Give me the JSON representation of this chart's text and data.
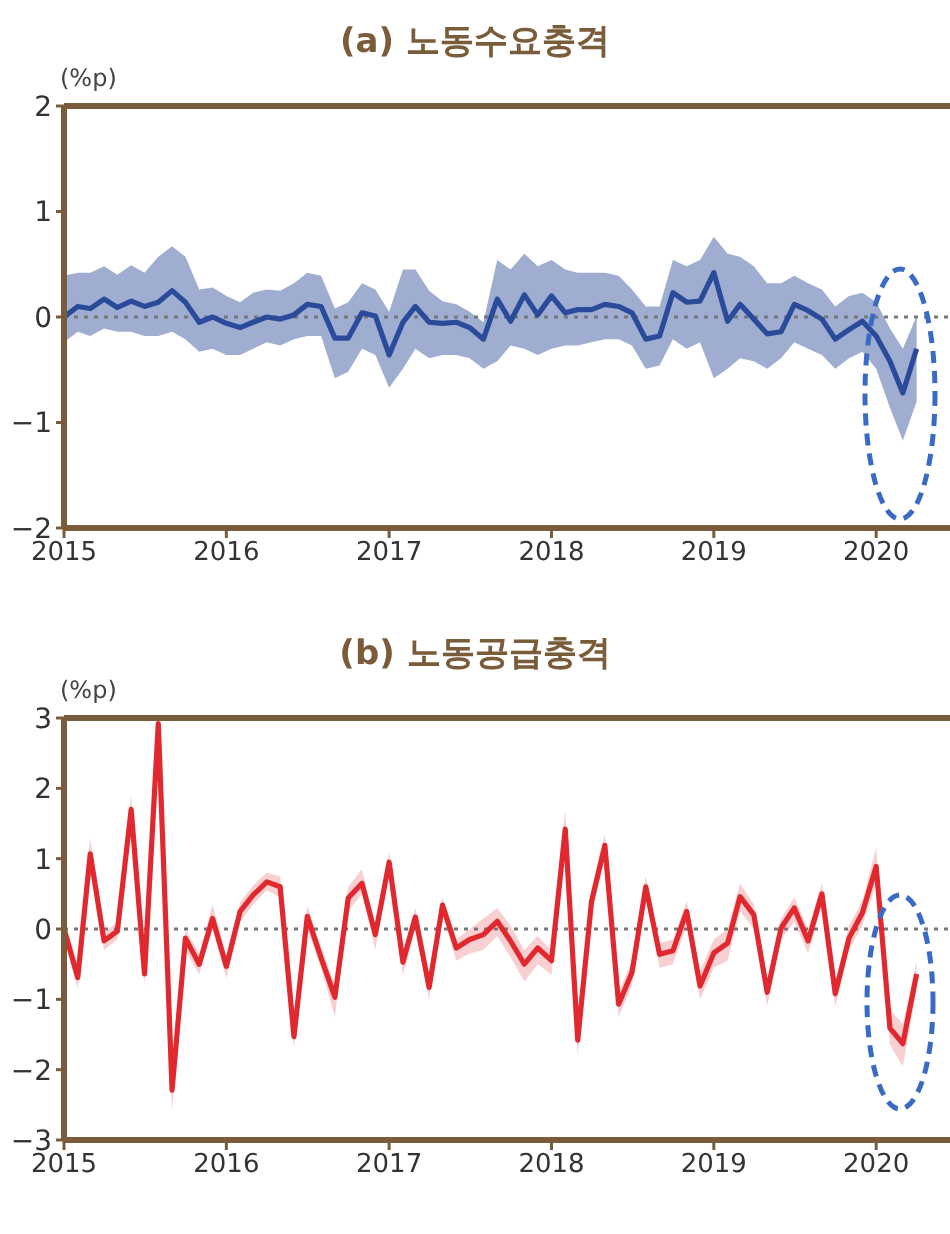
{
  "chart_data": [
    {
      "type": "line",
      "title": "(a) 노동수요충격",
      "ylabel": "(%p)",
      "x": [
        "2015-01",
        "2015-02",
        "2015-03",
        "2015-04",
        "2015-05",
        "2015-06",
        "2015-07",
        "2015-08",
        "2015-09",
        "2015-10",
        "2015-11",
        "2015-12",
        "2016-01",
        "2016-02",
        "2016-03",
        "2016-04",
        "2016-05",
        "2016-06",
        "2016-07",
        "2016-08",
        "2016-09",
        "2016-10",
        "2016-11",
        "2016-12",
        "2017-01",
        "2017-02",
        "2017-03",
        "2017-04",
        "2017-05",
        "2017-06",
        "2017-07",
        "2017-08",
        "2017-09",
        "2017-10",
        "2017-11",
        "2017-12",
        "2018-01",
        "2018-02",
        "2018-03",
        "2018-04",
        "2018-05",
        "2018-06",
        "2018-07",
        "2018-08",
        "2018-09",
        "2018-10",
        "2018-11",
        "2018-12",
        "2019-01",
        "2019-02",
        "2019-03",
        "2019-04",
        "2019-05",
        "2019-06",
        "2019-07",
        "2019-08",
        "2019-09",
        "2019-10",
        "2019-11",
        "2019-12",
        "2020-01",
        "2020-02",
        "2020-03",
        "2020-04"
      ],
      "series": [
        {
          "color": "#2a4a9a",
          "values": [
            0,
            0.1,
            0.08,
            0.17,
            0.09,
            0.15,
            0.1,
            0.14,
            0.25,
            0.14,
            -0.05,
            0,
            -0.06,
            -0.1,
            -0.05,
            0,
            -0.02,
            0.02,
            0.12,
            0.1,
            -0.2,
            -0.2,
            0.04,
            0.01,
            -0.36,
            -0.05,
            0.1,
            -0.05,
            -0.06,
            -0.05,
            -0.1,
            -0.21,
            0.17,
            -0.04,
            0.21,
            0.02,
            0.2,
            0.04,
            0.07,
            0.07,
            0.12,
            0.1,
            0.04,
            -0.21,
            -0.18,
            0.23,
            0.14,
            0.15,
            0.42,
            -0.04,
            0.12,
            -0.02,
            -0.16,
            -0.14,
            0.12,
            0.06,
            -0.02,
            -0.21,
            -0.12,
            -0.04,
            -0.18,
            -0.42,
            -0.72,
            -0.3
          ],
          "lower": [
            -0.24,
            -0.14,
            -0.18,
            -0.11,
            -0.14,
            -0.14,
            -0.18,
            -0.18,
            -0.14,
            -0.21,
            -0.33,
            -0.3,
            -0.36,
            -0.36,
            -0.3,
            -0.24,
            -0.27,
            -0.21,
            -0.18,
            -0.18,
            -0.58,
            -0.52,
            -0.3,
            -0.36,
            -0.67,
            -0.49,
            -0.3,
            -0.39,
            -0.36,
            -0.36,
            -0.39,
            -0.49,
            -0.42,
            -0.27,
            -0.3,
            -0.36,
            -0.3,
            -0.27,
            -0.27,
            -0.24,
            -0.21,
            -0.21,
            -0.27,
            -0.49,
            -0.46,
            -0.21,
            -0.3,
            -0.24,
            -0.58,
            -0.49,
            -0.39,
            -0.42,
            -0.49,
            -0.39,
            -0.24,
            -0.3,
            -0.36,
            -0.49,
            -0.39,
            -0.33,
            -0.49,
            -0.86,
            -1.17,
            -0.8
          ],
          "upper": [
            0.39,
            0.42,
            0.42,
            0.48,
            0.4,
            0.49,
            0.42,
            0.57,
            0.67,
            0.57,
            0.26,
            0.28,
            0.2,
            0.14,
            0.23,
            0.26,
            0.25,
            0.32,
            0.42,
            0.39,
            0.08,
            0.14,
            0.32,
            0.26,
            0.05,
            0.45,
            0.45,
            0.25,
            0.15,
            0.12,
            0.05,
            -0.05,
            0.54,
            0.45,
            0.6,
            0.48,
            0.54,
            0.45,
            0.42,
            0.42,
            0.42,
            0.39,
            0.26,
            0.1,
            0.1,
            0.54,
            0.48,
            0.54,
            0.76,
            0.6,
            0.57,
            0.48,
            0.32,
            0.32,
            0.39,
            0.32,
            0.26,
            0.1,
            0.2,
            0.23,
            0.14,
            -0.11,
            -0.3,
            0.01
          ]
        }
      ],
      "xlim": [
        "2015-01",
        "2020-06-15"
      ],
      "xticks": [
        "2015",
        "2016",
        "2017",
        "2018",
        "2019",
        "2020"
      ],
      "ylim": [
        -2,
        2
      ],
      "yticks": [
        {
          "value": -2,
          "label": "−2"
        },
        {
          "value": -1,
          "label": "−1"
        },
        0,
        1,
        2
      ],
      "ref_lines": [
        {
          "axis": "y",
          "value": 0,
          "color": "#777777",
          "line_style": "dotted"
        }
      ],
      "grid": false,
      "legend": false,
      "marker": "none",
      "line_style": "solid"
    },
    {
      "type": "line",
      "title": "(b) 노동공급충격",
      "ylabel": "(%p)",
      "x": [
        "2015-01",
        "2015-02",
        "2015-03",
        "2015-04",
        "2015-05",
        "2015-06",
        "2015-07",
        "2015-08",
        "2015-09",
        "2015-10",
        "2015-11",
        "2015-12",
        "2016-01",
        "2016-02",
        "2016-03",
        "2016-04",
        "2016-05",
        "2016-06",
        "2016-07",
        "2016-08",
        "2016-09",
        "2016-10",
        "2016-11",
        "2016-12",
        "2017-01",
        "2017-02",
        "2017-03",
        "2017-04",
        "2017-05",
        "2017-06",
        "2017-07",
        "2017-08",
        "2017-09",
        "2017-10",
        "2017-11",
        "2017-12",
        "2018-01",
        "2018-02",
        "2018-03",
        "2018-04",
        "2018-05",
        "2018-06",
        "2018-07",
        "2018-08",
        "2018-09",
        "2018-10",
        "2018-11",
        "2018-12",
        "2019-01",
        "2019-02",
        "2019-03",
        "2019-04",
        "2019-05",
        "2019-06",
        "2019-07",
        "2019-08",
        "2019-09",
        "2019-10",
        "2019-11",
        "2019-12",
        "2020-01",
        "2020-02",
        "2020-03",
        "2020-04"
      ],
      "series": [
        {
          "color": "#e0282e",
          "values": [
            0,
            -0.69,
            1.07,
            -0.17,
            -0.03,
            1.7,
            -0.64,
            2.92,
            -2.29,
            -0.13,
            -0.5,
            0.15,
            -0.53,
            0.25,
            0.48,
            0.67,
            0.6,
            -1.53,
            0.18,
            -0.41,
            -0.97,
            0.44,
            0.65,
            -0.08,
            0.95,
            -0.47,
            0.17,
            -0.83,
            0.34,
            -0.27,
            -0.15,
            -0.08,
            0.11,
            -0.17,
            -0.5,
            -0.27,
            -0.45,
            1.42,
            -1.58,
            0.39,
            1.19,
            -1.07,
            -0.62,
            0.6,
            -0.36,
            -0.31,
            0.25,
            -0.81,
            -0.34,
            -0.2,
            0.46,
            0.2,
            -0.9,
            0.01,
            0.3,
            -0.17,
            0.5,
            -0.92,
            -0.13,
            0.23,
            0.89,
            -1.41,
            -1.63,
            -0.64
          ],
          "lower": [
            -0.15,
            -0.85,
            0.85,
            -0.3,
            -0.15,
            1.5,
            -0.8,
            2.7,
            -2.6,
            -0.3,
            -0.65,
            0.0,
            -0.7,
            0.1,
            0.35,
            0.55,
            0.45,
            -1.7,
            0.0,
            -0.55,
            -1.25,
            0.25,
            0.5,
            -0.3,
            0.8,
            -0.65,
            0.0,
            -1.0,
            0.2,
            -0.45,
            -0.35,
            -0.3,
            -0.1,
            -0.4,
            -0.75,
            -0.5,
            -0.65,
            1.15,
            -1.8,
            0.2,
            1.0,
            -1.25,
            -0.8,
            0.45,
            -0.55,
            -0.5,
            0.05,
            -1.0,
            -0.55,
            -0.45,
            0.25,
            0.0,
            -1.1,
            -0.15,
            0.1,
            -0.35,
            0.35,
            -1.1,
            -0.3,
            0.05,
            0.65,
            -1.65,
            -1.95,
            -0.85
          ],
          "upper": [
            0.15,
            -0.5,
            1.3,
            -0.05,
            0.1,
            1.9,
            -0.45,
            3,
            -2.0,
            0.0,
            -0.35,
            0.35,
            -0.38,
            0.38,
            0.62,
            0.8,
            0.75,
            -1.35,
            0.33,
            -0.25,
            -0.8,
            0.6,
            0.85,
            0.05,
            1.1,
            -0.3,
            0.3,
            -0.65,
            0.45,
            -0.15,
            0.0,
            0.15,
            0.3,
            0.05,
            -0.3,
            -0.1,
            -0.3,
            1.7,
            -1.35,
            0.55,
            1.35,
            -0.9,
            -0.45,
            0.75,
            -0.2,
            -0.15,
            0.4,
            -0.6,
            -0.15,
            0.0,
            0.65,
            0.35,
            -0.7,
            0.15,
            0.45,
            0.0,
            0.65,
            -0.75,
            0.05,
            0.4,
            1.15,
            -1.15,
            -1.35,
            -0.45
          ]
        }
      ],
      "xlim": [
        "2015-01",
        "2020-06-15"
      ],
      "xticks": [
        "2015",
        "2016",
        "2017",
        "2018",
        "2019",
        "2020"
      ],
      "ylim": [
        -3,
        3
      ],
      "yticks": [
        {
          "value": -3,
          "label": "−3"
        },
        {
          "value": -2,
          "label": "−2"
        },
        {
          "value": -1,
          "label": "−1"
        },
        0,
        1,
        2,
        3
      ],
      "ref_lines": [
        {
          "axis": "y",
          "value": 0,
          "color": "#777777",
          "line_style": "dotted"
        }
      ],
      "grid": false,
      "legend": false,
      "marker": "none",
      "line_style": "solid"
    }
  ]
}
